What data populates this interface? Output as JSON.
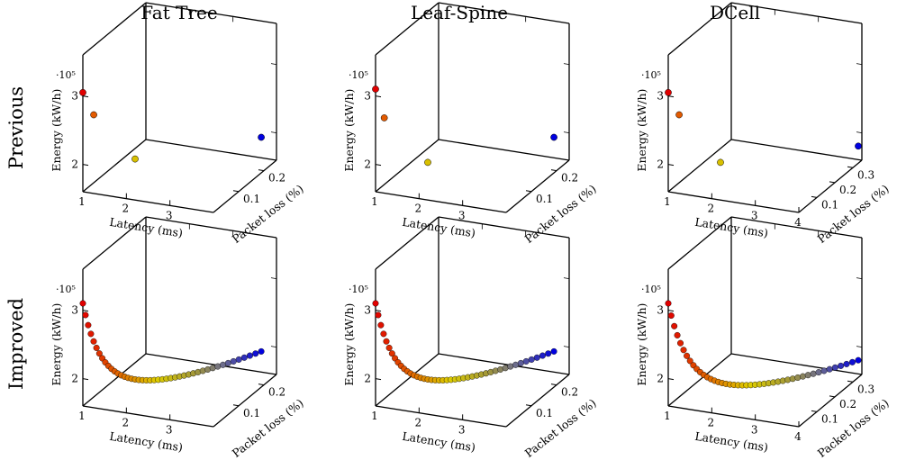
{
  "column_titles": [
    "Fat Tree",
    "Leaf-Spine",
    "DCell"
  ],
  "row_titles": [
    "Previous",
    "Improved"
  ],
  "axis_labels": {
    "x": "Latency (ms)",
    "y": "Packet loss (%)",
    "z": "Energy (kW/h)",
    "z_multiplier": "·10⁵"
  },
  "chart_data": [
    {
      "type": "scatter",
      "title": "Fat Tree",
      "row": "Previous",
      "xlim": [
        1,
        4
      ],
      "ylim": [
        0,
        0.25
      ],
      "zlim": [
        1.6,
        3.6
      ],
      "xticks": [
        "1",
        "2",
        "3"
      ],
      "yticks": [
        "0.1",
        "0.2"
      ],
      "zticks": [
        "2",
        "3"
      ],
      "points": [
        {
          "x": 1.0,
          "y": 0.0,
          "z": 3.05,
          "color": "#e00000"
        },
        {
          "x": 1.25,
          "y": 0.0,
          "z": 2.75,
          "color": "#e25a00"
        },
        {
          "x": 2.2,
          "y": 0.0,
          "z": 2.2,
          "color": "#d8c000"
        },
        {
          "x": 3.65,
          "y": 0.25,
          "z": 1.9,
          "color": "#0000e0"
        }
      ]
    },
    {
      "type": "scatter",
      "title": "Leaf-Spine",
      "row": "Previous",
      "xlim": [
        1,
        4
      ],
      "ylim": [
        0,
        0.25
      ],
      "zlim": [
        1.6,
        3.6
      ],
      "xticks": [
        "1",
        "2",
        "3"
      ],
      "yticks": [
        "0.1",
        "0.2"
      ],
      "zticks": [
        "2",
        "3"
      ],
      "points": [
        {
          "x": 1.0,
          "y": 0.0,
          "z": 3.1,
          "color": "#e00000"
        },
        {
          "x": 1.2,
          "y": 0.0,
          "z": 2.7,
          "color": "#e25a00"
        },
        {
          "x": 2.2,
          "y": 0.0,
          "z": 2.15,
          "color": "#d8c000"
        },
        {
          "x": 3.65,
          "y": 0.25,
          "z": 1.9,
          "color": "#0000e0"
        }
      ]
    },
    {
      "type": "scatter",
      "title": "DCell",
      "row": "Previous",
      "xlim": [
        1,
        4
      ],
      "ylim": [
        0,
        0.35
      ],
      "zlim": [
        1.6,
        3.6
      ],
      "xticks": [
        "1",
        "2",
        "3",
        "4"
      ],
      "yticks": [
        "0.1",
        "0.2",
        "0.3"
      ],
      "zticks": [
        "2",
        "3"
      ],
      "points": [
        {
          "x": 1.0,
          "y": 0.0,
          "z": 3.05,
          "color": "#e00000"
        },
        {
          "x": 1.25,
          "y": 0.0,
          "z": 2.75,
          "color": "#e25a00"
        },
        {
          "x": 2.2,
          "y": 0.0,
          "z": 2.15,
          "color": "#d8c000"
        },
        {
          "x": 4.0,
          "y": 0.33,
          "z": 1.85,
          "color": "#0000e0"
        }
      ]
    },
    {
      "type": "scatter",
      "title": "Fat Tree",
      "row": "Improved",
      "xlim": [
        1,
        4
      ],
      "ylim": [
        0,
        0.25
      ],
      "zlim": [
        1.6,
        3.6
      ],
      "xticks": [
        "1",
        "2",
        "3"
      ],
      "yticks": [
        "0.1",
        "0.2"
      ],
      "zticks": [
        "2",
        "3"
      ],
      "curve": {
        "x_start": 1.0,
        "x_end": 3.65,
        "y_start": 0.0,
        "y_end": 0.25,
        "z_start": 3.1,
        "z_end": 1.9,
        "count": 45
      }
    },
    {
      "type": "scatter",
      "title": "Leaf-Spine",
      "row": "Improved",
      "xlim": [
        1,
        4
      ],
      "ylim": [
        0,
        0.25
      ],
      "zlim": [
        1.6,
        3.6
      ],
      "xticks": [
        "1",
        "2",
        "3"
      ],
      "yticks": [
        "0.1",
        "0.2"
      ],
      "zticks": [
        "2",
        "3"
      ],
      "curve": {
        "x_start": 1.0,
        "x_end": 3.65,
        "y_start": 0.0,
        "y_end": 0.25,
        "z_start": 3.1,
        "z_end": 1.9,
        "count": 45
      }
    },
    {
      "type": "scatter",
      "title": "DCell",
      "row": "Improved",
      "xlim": [
        1,
        4
      ],
      "ylim": [
        0,
        0.35
      ],
      "zlim": [
        1.6,
        3.6
      ],
      "xticks": [
        "1",
        "2",
        "3",
        "4"
      ],
      "yticks": [
        "0.1",
        "0.2",
        "0.3"
      ],
      "zticks": [
        "2",
        "3"
      ],
      "curve": {
        "x_start": 1.0,
        "x_end": 4.0,
        "y_start": 0.0,
        "y_end": 0.33,
        "z_start": 3.1,
        "z_end": 1.85,
        "count": 45
      }
    }
  ]
}
